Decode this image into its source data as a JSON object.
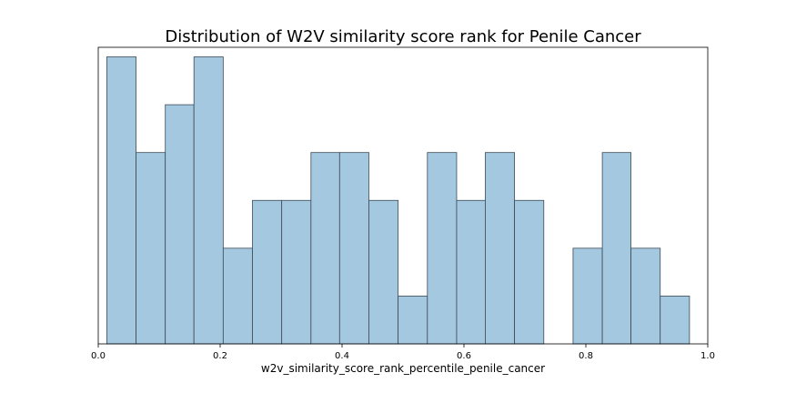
{
  "chart_data": {
    "type": "bar",
    "title": "Distribution of W2V similarity score rank for Penile Cancer",
    "xlabel": "w2v_similarity_score_rank_percentile_penile_cancer",
    "ylabel": "",
    "xlim": [
      0.0,
      1.0
    ],
    "ylim": [
      0,
      6.2
    ],
    "xticks": [
      "0.0",
      "0.2",
      "0.4",
      "0.6",
      "0.8",
      "1.0"
    ],
    "yticks_visible": false,
    "grid": false,
    "legend": "none",
    "bar_color": "#a5c8e1",
    "edge_color": "#3b4a55",
    "bins": [
      {
        "x0": 0.014,
        "x1": 0.062,
        "count": 6
      },
      {
        "x0": 0.062,
        "x1": 0.11,
        "count": 4
      },
      {
        "x0": 0.11,
        "x1": 0.157,
        "count": 5
      },
      {
        "x0": 0.157,
        "x1": 0.205,
        "count": 6
      },
      {
        "x0": 0.205,
        "x1": 0.253,
        "count": 2
      },
      {
        "x0": 0.253,
        "x1": 0.301,
        "count": 3
      },
      {
        "x0": 0.301,
        "x1": 0.349,
        "count": 3
      },
      {
        "x0": 0.349,
        "x1": 0.396,
        "count": 4
      },
      {
        "x0": 0.396,
        "x1": 0.444,
        "count": 4
      },
      {
        "x0": 0.444,
        "x1": 0.492,
        "count": 3
      },
      {
        "x0": 0.492,
        "x1": 0.54,
        "count": 1
      },
      {
        "x0": 0.54,
        "x1": 0.588,
        "count": 4
      },
      {
        "x0": 0.588,
        "x1": 0.635,
        "count": 3
      },
      {
        "x0": 0.635,
        "x1": 0.683,
        "count": 4
      },
      {
        "x0": 0.683,
        "x1": 0.731,
        "count": 3
      },
      {
        "x0": 0.731,
        "x1": 0.779,
        "count": 0
      },
      {
        "x0": 0.779,
        "x1": 0.827,
        "count": 2
      },
      {
        "x0": 0.827,
        "x1": 0.874,
        "count": 4
      },
      {
        "x0": 0.874,
        "x1": 0.922,
        "count": 2
      },
      {
        "x0": 0.922,
        "x1": 0.97,
        "count": 1
      }
    ]
  }
}
